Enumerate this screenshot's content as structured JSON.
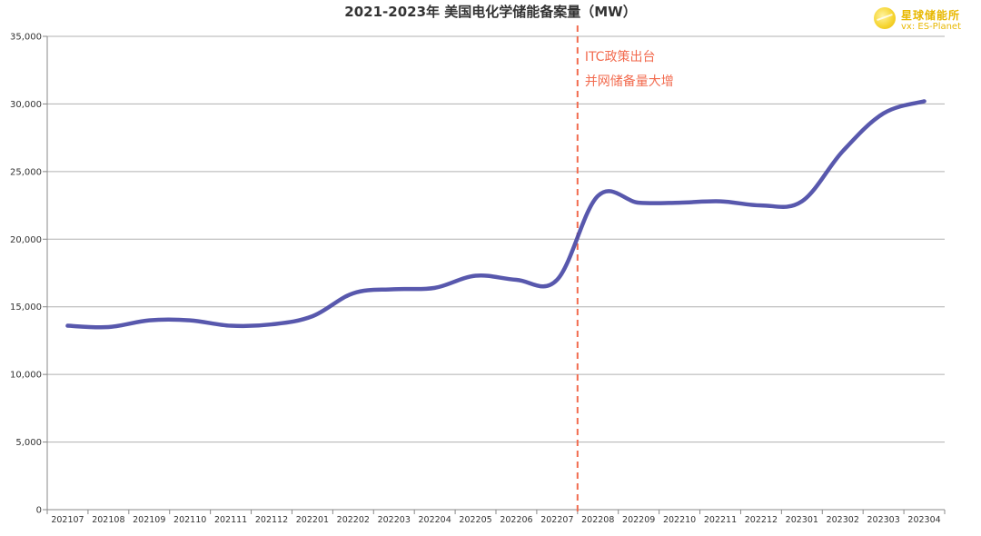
{
  "chart_data": {
    "type": "line",
    "title": "2021-2023年 美国电化学储能备案量（MW）",
    "xlabel": "",
    "ylabel": "",
    "categories": [
      "202107",
      "202108",
      "202109",
      "202110",
      "202111",
      "202112",
      "202201",
      "202202",
      "202203",
      "202204",
      "202205",
      "202206",
      "202207",
      "202208",
      "202209",
      "202210",
      "202211",
      "202212",
      "202301",
      "202302",
      "202303",
      "202304"
    ],
    "series": [
      {
        "values": [
          13600,
          13500,
          14000,
          14000,
          13600,
          13700,
          14300,
          16000,
          16300,
          16400,
          17300,
          17000,
          17000,
          23200,
          22700,
          22700,
          22800,
          22500,
          22800,
          26500,
          29300,
          30200
        ],
        "color": "#4a4aa6"
      }
    ],
    "ylim": [
      0,
      35000
    ],
    "yticks": [
      0,
      5000,
      10000,
      15000,
      20000,
      25000,
      30000,
      35000
    ],
    "ytick_labels": [
      "0",
      "5,000",
      "10,000",
      "15,000",
      "20,000",
      "25,000",
      "30,000",
      "35,000"
    ],
    "grid": true,
    "annotation": {
      "position_category": "202207-202208",
      "lines": [
        "ITC政策出台",
        "并网储备量大增"
      ],
      "color": "#f26b4f"
    }
  },
  "logo": {
    "brand": "星球储能所",
    "vx": "vx: ES-Planet"
  }
}
